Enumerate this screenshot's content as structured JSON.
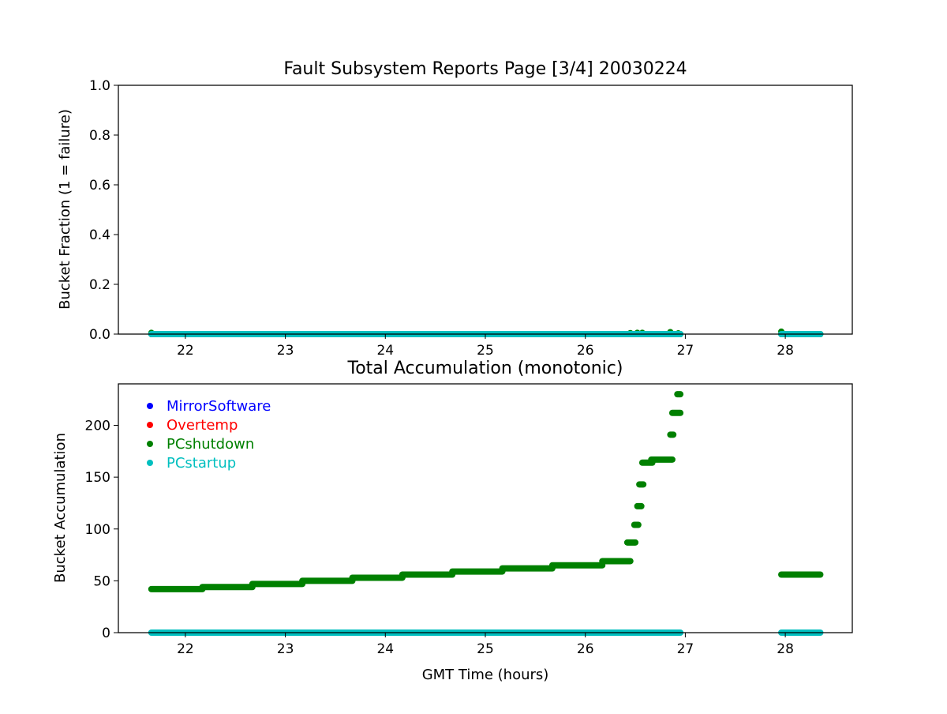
{
  "chart_data": [
    {
      "type": "scatter",
      "title": "Fault Subsystem Reports Page [3/4] 20030224",
      "xlabel": "",
      "ylabel": "Bucket Fraction (1 = failure)",
      "xlim": [
        21.33,
        28.67
      ],
      "ylim": [
        0,
        1
      ],
      "xticks": [
        22,
        23,
        24,
        25,
        26,
        27,
        28
      ],
      "yticks": [
        0.0,
        0.2,
        0.4,
        0.6,
        0.8,
        1.0
      ],
      "ytick_labels": [
        "0.0",
        "0.2",
        "0.4",
        "0.6",
        "0.8",
        "1.0"
      ],
      "grid": false,
      "series": [
        {
          "name": "PCshutdown",
          "color": "#008000",
          "points": [
            [
              21.66,
              0.005
            ],
            [
              26.45,
              0.004
            ],
            [
              26.52,
              0.005
            ],
            [
              26.57,
              0.005
            ],
            [
              26.85,
              0.008
            ],
            [
              26.93,
              0.003
            ],
            [
              27.96,
              0.01
            ]
          ],
          "segments": [
            [
              21.66,
              26.95
            ],
            [
              27.96,
              28.35
            ]
          ],
          "segment_value": 0
        },
        {
          "name": "PCstartup",
          "color": "#00bfbf",
          "segments": [
            [
              21.66,
              26.95
            ],
            [
              27.96,
              28.35
            ]
          ],
          "segment_value": 0
        }
      ]
    },
    {
      "type": "scatter",
      "title": "Total Accumulation (monotonic)",
      "xlabel": "GMT Time (hours)",
      "ylabel": "Bucket Accumulation",
      "xlim": [
        21.33,
        28.67
      ],
      "ylim": [
        0,
        240
      ],
      "xticks": [
        22,
        23,
        24,
        25,
        26,
        27,
        28
      ],
      "yticks": [
        0,
        50,
        100,
        150,
        200
      ],
      "ytick_labels": [
        "0",
        "50",
        "100",
        "150",
        "200"
      ],
      "grid": false,
      "legend": {
        "placement": "upper-left",
        "entries": [
          {
            "name": "MirrorSoftware",
            "color": "#0000ff"
          },
          {
            "name": "Overtemp",
            "color": "#ff0000"
          },
          {
            "name": "PCshutdown",
            "color": "#008000"
          },
          {
            "name": "PCstartup",
            "color": "#00bfbf"
          }
        ]
      },
      "series": [
        {
          "name": "PCshutdown",
          "color": "#008000",
          "runs": [
            [
              21.66,
              22.17,
              42
            ],
            [
              22.17,
              22.67,
              44
            ],
            [
              22.67,
              23.17,
              47
            ],
            [
              23.17,
              23.67,
              50
            ],
            [
              23.67,
              24.17,
              53
            ],
            [
              24.17,
              24.67,
              56
            ],
            [
              24.67,
              25.17,
              59
            ],
            [
              25.17,
              25.67,
              62
            ],
            [
              25.67,
              26.17,
              65
            ],
            [
              26.17,
              26.45,
              69
            ],
            [
              26.42,
              26.5,
              87
            ],
            [
              26.49,
              26.53,
              104
            ],
            [
              26.52,
              26.56,
              122
            ],
            [
              26.54,
              26.58,
              143
            ],
            [
              26.57,
              26.67,
              164
            ],
            [
              26.66,
              26.87,
              167
            ],
            [
              26.85,
              26.88,
              191
            ],
            [
              26.87,
              26.95,
              212
            ],
            [
              26.92,
              26.95,
              230
            ],
            [
              27.96,
              28.35,
              56
            ]
          ]
        },
        {
          "name": "PCstartup",
          "color": "#00bfbf",
          "runs": [
            [
              21.66,
              26.95,
              0
            ],
            [
              27.96,
              28.35,
              0
            ]
          ]
        }
      ]
    }
  ]
}
